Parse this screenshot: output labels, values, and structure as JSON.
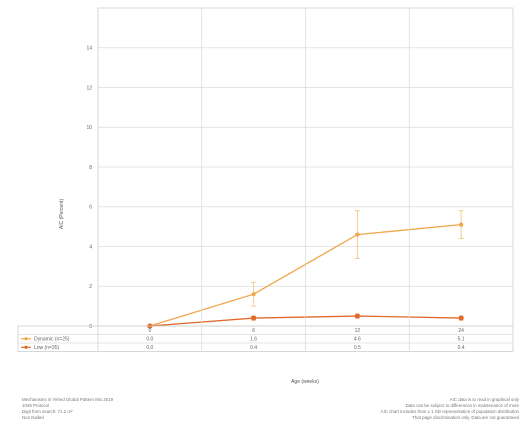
{
  "chart_data": {
    "type": "line",
    "x": [
      0,
      6,
      12,
      24
    ],
    "xlabel": "Age (weeks)",
    "ylabel": "AIC (Percent)",
    "ylim": [
      0,
      16
    ],
    "yticks": [
      0,
      2,
      4,
      6,
      8,
      10,
      12,
      14
    ],
    "series": [
      {
        "name": "Dynamic (n=25)",
        "color": "#f0a64a",
        "values": [
          0.0,
          1.6,
          4.6,
          5.1
        ],
        "error": [
          0.0,
          0.6,
          1.2,
          0.7
        ],
        "table_values": [
          "0.0",
          "1.6",
          "4.6",
          "5.1"
        ]
      },
      {
        "name": "Low (n=35)",
        "color": "#e06a2c",
        "values": [
          0.0,
          0.4,
          0.5,
          0.4
        ],
        "error": [
          0.0,
          0.1,
          0.1,
          0.1
        ],
        "table_values": [
          "0.0",
          "0.4",
          "0.5",
          "0.4"
        ]
      }
    ],
    "grid": true,
    "legend_placement": "bottom-table"
  },
  "footer": {
    "left": [
      "Mechanisms in Yehed Global Pattern Mix 2019",
      "1049 Protocol",
      "Digit from search: 71.2 m²",
      "Non Nailed"
    ],
    "right": [
      "AIC data is to read in graphical only",
      "Data can be subject to differences in maintenance of more",
      "AIC chart includes from ± 1 SD representation of population distribution",
      "That page discrimination only. Data are not guaranteed"
    ]
  }
}
